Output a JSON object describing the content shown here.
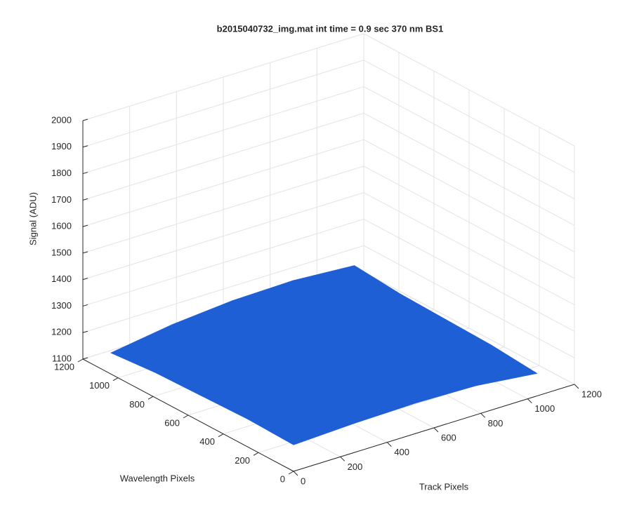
{
  "chart_data": {
    "type": "surface3d",
    "title": "b2015040732_img.mat int time = 0.9 sec  370 nm BS1",
    "xlabel": "Track Pixels",
    "ylabel": "Wavelength Pixels",
    "zlabel": "Signal (ADU)",
    "x": [
      0,
      260,
      520,
      780,
      1040
    ],
    "y": [
      0,
      260,
      520,
      780,
      1040
    ],
    "z": [
      [
        1200,
        1210,
        1215,
        1210,
        1185
      ],
      [
        1205,
        1225,
        1235,
        1230,
        1200
      ],
      [
        1200,
        1230,
        1240,
        1235,
        1205
      ],
      [
        1195,
        1225,
        1240,
        1235,
        1210
      ],
      [
        1180,
        1215,
        1235,
        1240,
        1225
      ]
    ],
    "color": "#1f5fd6",
    "xlim": [
      0,
      1200
    ],
    "xticks": [
      0,
      200,
      400,
      600,
      800,
      1000,
      1200
    ],
    "ylim": [
      0,
      1200
    ],
    "yticks": [
      0,
      200,
      400,
      600,
      800,
      1000,
      1200
    ],
    "zlim": [
      1100,
      2000
    ],
    "zticks": [
      1100,
      1200,
      1300,
      1400,
      1500,
      1600,
      1700,
      1800,
      1900,
      2000
    ],
    "grid": true
  }
}
